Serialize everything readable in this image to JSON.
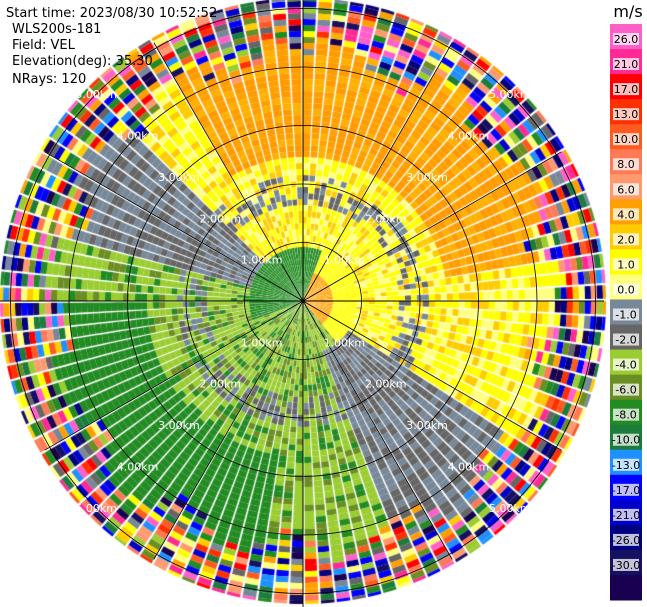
{
  "header": {
    "start_time": "Start time: 2023/08/30 10:52:52",
    "instrument": "WLS200s-181",
    "field": "Field: VEL",
    "elevation": "Elevation(deg): 35.30",
    "nrays": "NRays: 120"
  },
  "chart_data": {
    "type": "heatmap",
    "subtype": "polar-ppi",
    "nrays": 120,
    "max_range_km": 5.5,
    "grid": true,
    "crosshair": true,
    "range_rings_km": [
      1,
      2,
      3,
      4,
      5
    ],
    "range_ring_labels": [
      "1.00km",
      "2.00km",
      "3.00km",
      "4.00km",
      "5.00km"
    ],
    "spokes_deg": [
      0,
      30,
      60,
      90,
      120,
      150,
      180,
      210,
      240,
      270,
      300,
      330
    ],
    "colorbar": {
      "unit": "m/s",
      "tick_labels": [
        "26.0",
        "21.0",
        "17.0",
        "13.0",
        "10.0",
        "8.0",
        "6.0",
        "4.0",
        "2.0",
        "1.0",
        "0.0",
        "-1.0",
        "-2.0",
        "-4.0",
        "-6.0",
        "-8.0",
        "-10.0",
        "-13.0",
        "-17.0",
        "-21.0",
        "-26.0",
        "-30.0"
      ],
      "colors": [
        "#ff5fc8",
        "#ff2a95",
        "#ff0000",
        "#ff3000",
        "#ff5a20",
        "#ff7a55",
        "#ff9a70",
        "#ffa000",
        "#ffcc00",
        "#ffff00",
        "#ffff80",
        "#778899",
        "#666666",
        "#9acd32",
        "#6b8e23",
        "#228b22",
        "#1c7c3c",
        "#1e90ff",
        "#0000ff",
        "#0000cd",
        "#000080",
        "#151060",
        "#1a0050"
      ]
    },
    "pattern": {
      "near_field": "positive velocities (yellow/orange) toward the north-east, negative velocities (green) toward the south-west, grey zero-velocity band between",
      "far_field": "noisy multi-colour speckle beyond ~4.2 km"
    }
  }
}
